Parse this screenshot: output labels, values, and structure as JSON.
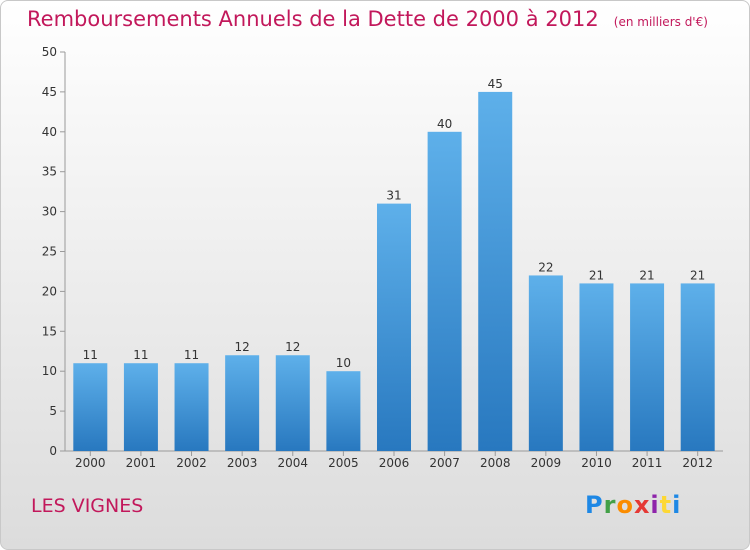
{
  "chart_data": {
    "type": "bar",
    "title": "Remboursements Annuels de la Dette de 2000 à 2012",
    "subtitle": "(en milliers d'€)",
    "categories": [
      "2000",
      "2001",
      "2002",
      "2003",
      "2004",
      "2005",
      "2006",
      "2007",
      "2008",
      "2009",
      "2010",
      "2011",
      "2012"
    ],
    "values": [
      11,
      11,
      11,
      12,
      12,
      10,
      31,
      40,
      45,
      22,
      21,
      21,
      21
    ],
    "ylim": [
      0,
      50
    ],
    "yticks": [
      0,
      5,
      10,
      15,
      20,
      25,
      30,
      35,
      40,
      45,
      50
    ],
    "xlabel": "",
    "ylabel": "",
    "grid": false,
    "bar_color": "#3f98dc",
    "data_labels": true
  },
  "footer": {
    "place": "LES VIGNES",
    "logo": [
      "P",
      "r",
      "o",
      "x",
      "i",
      "t",
      "i"
    ]
  },
  "colors": {
    "title": "#c2185b",
    "bar_light": "#5eb0ea",
    "bar_dark": "#2878bf"
  }
}
